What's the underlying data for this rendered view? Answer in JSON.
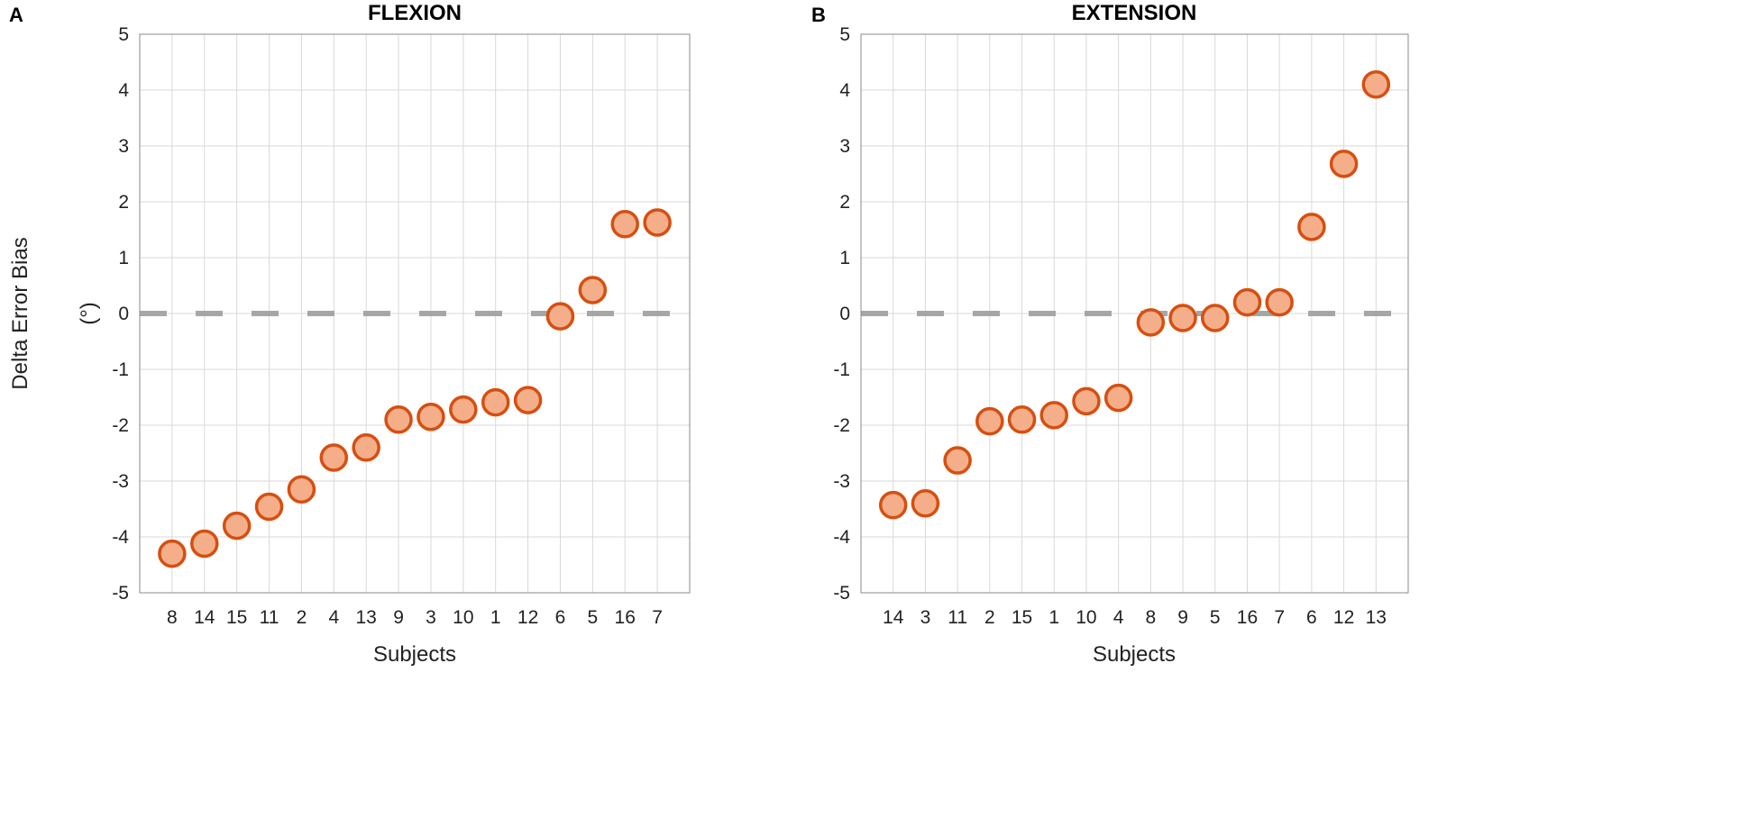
{
  "ylabel": "Delta Error Bias",
  "chart_data": [
    {
      "type": "scatter",
      "panel": "A",
      "title": "FLEXION",
      "xlabel": "Subjects",
      "ylabel": "(°)",
      "ylim": [
        -5,
        5
      ],
      "yticks": [
        5,
        4,
        3,
        2,
        1,
        0,
        -1,
        -2,
        -3,
        -4,
        -5
      ],
      "grid": true,
      "reference_line": 0,
      "categories": [
        "8",
        "14",
        "15",
        "11",
        "2",
        "4",
        "13",
        "9",
        "3",
        "10",
        "1",
        "12",
        "6",
        "5",
        "16",
        "7"
      ],
      "values": [
        -4.3,
        -4.12,
        -3.8,
        -3.46,
        -3.15,
        -2.58,
        -2.4,
        -1.9,
        -1.85,
        -1.72,
        -1.59,
        -1.55,
        -0.05,
        0.42,
        1.6,
        1.63
      ]
    },
    {
      "type": "scatter",
      "panel": "B",
      "title": "EXTENSION",
      "xlabel": "Subjects",
      "ylim": [
        -5,
        5
      ],
      "yticks": [
        5,
        4,
        3,
        2,
        1,
        0,
        -1,
        -2,
        -3,
        -4,
        -5
      ],
      "grid": true,
      "reference_line": 0,
      "categories": [
        "14",
        "3",
        "11",
        "2",
        "15",
        "1",
        "10",
        "4",
        "8",
        "9",
        "5",
        "16",
        "7",
        "6",
        "12",
        "13"
      ],
      "values": [
        -3.43,
        -3.4,
        -2.63,
        -1.93,
        -1.9,
        -1.82,
        -1.57,
        -1.51,
        -0.16,
        -0.08,
        -0.08,
        0.2,
        0.2,
        1.55,
        2.68,
        4.1
      ]
    }
  ]
}
